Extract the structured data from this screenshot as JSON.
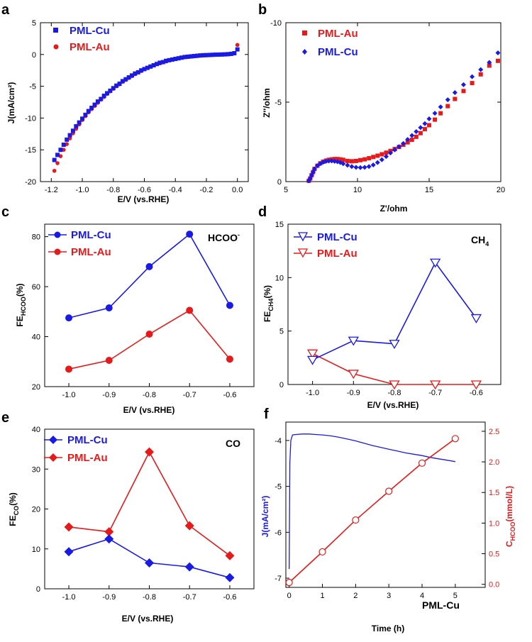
{
  "colors": {
    "cu": "#1a1ae6",
    "au": "#e61a1a",
    "axis": "#000000"
  },
  "chart_data": [
    {
      "panel": "a",
      "type": "scatter",
      "xlabel": "E/V (vs.RHE)",
      "ylabel": "J(mA/cm²)",
      "xlim": [
        -1.27,
        0.07
      ],
      "ylim": [
        -20,
        5
      ],
      "xticks": [
        -1.2,
        -1.0,
        -0.8,
        -0.6,
        -0.4,
        -0.2,
        0.0
      ],
      "xtick_labels": [
        "-1.2",
        "-1.0",
        "-0.8",
        "-0.6",
        "-0.4",
        "-0.2",
        "0.0"
      ],
      "yticks": [
        5,
        0,
        -5,
        -10,
        -15,
        -20
      ],
      "ytick_labels": [
        "5",
        "0",
        "-5",
        "-10",
        "-15",
        "-20"
      ],
      "legend": [
        "PML-Cu",
        "PML-Au"
      ],
      "series": [
        {
          "name": "PML-Cu",
          "marker": "square",
          "color": "#1a1ae6",
          "x": [
            -1.18,
            -1.16,
            -1.14,
            -1.12,
            -1.1,
            -1.08,
            -1.06,
            -1.04,
            -1.02,
            -1.0,
            -0.98,
            -0.96,
            -0.94,
            -0.92,
            -0.9,
            -0.88,
            -0.86,
            -0.84,
            -0.82,
            -0.8,
            -0.78,
            -0.76,
            -0.74,
            -0.72,
            -0.7,
            -0.68,
            -0.66,
            -0.64,
            -0.62,
            -0.6,
            -0.58,
            -0.56,
            -0.54,
            -0.52,
            -0.5,
            -0.48,
            -0.46,
            -0.44,
            -0.42,
            -0.4,
            -0.38,
            -0.36,
            -0.34,
            -0.32,
            -0.3,
            -0.28,
            -0.26,
            -0.24,
            -0.22,
            -0.2,
            -0.18,
            -0.16,
            -0.14,
            -0.12,
            -0.1,
            -0.08,
            -0.06,
            -0.04,
            -0.02,
            0.0
          ],
          "y": [
            -16.6,
            -15.8,
            -15.0,
            -14.2,
            -13.4,
            -12.7,
            -12.0,
            -11.3,
            -10.7,
            -10.1,
            -9.5,
            -8.9,
            -8.4,
            -7.9,
            -7.4,
            -7.0,
            -6.5,
            -6.1,
            -5.7,
            -5.3,
            -4.9,
            -4.6,
            -4.2,
            -3.9,
            -3.6,
            -3.3,
            -3.0,
            -2.8,
            -2.5,
            -2.3,
            -2.1,
            -1.9,
            -1.7,
            -1.5,
            -1.3,
            -1.2,
            -1.0,
            -0.9,
            -0.8,
            -0.7,
            -0.6,
            -0.5,
            -0.4,
            -0.35,
            -0.3,
            -0.25,
            -0.2,
            -0.15,
            -0.12,
            -0.1,
            -0.08,
            -0.05,
            -0.03,
            -0.02,
            0.0,
            0.02,
            0.05,
            0.1,
            0.2,
            0.8
          ]
        },
        {
          "name": "PML-Au",
          "marker": "circle",
          "color": "#e61a1a",
          "x": [
            -1.18,
            -1.16,
            -1.14,
            -1.12,
            -1.1,
            -1.08,
            -1.06,
            -1.04,
            -1.02,
            -1.0,
            -0.98,
            -0.96,
            -0.94,
            -0.92,
            -0.9,
            -0.88,
            -0.86,
            -0.84,
            -0.82,
            -0.8,
            -0.78,
            -0.76,
            -0.74,
            -0.72,
            -0.7,
            -0.68,
            -0.66,
            -0.64,
            -0.62,
            -0.6,
            -0.58,
            -0.56,
            -0.54,
            -0.52,
            -0.5,
            -0.48,
            -0.46,
            -0.44,
            -0.42,
            -0.4,
            -0.38,
            -0.36,
            -0.34,
            -0.32,
            -0.3,
            -0.28,
            -0.26,
            -0.24,
            -0.22,
            -0.2,
            -0.18,
            -0.16,
            -0.14,
            -0.12,
            -0.1,
            -0.08,
            -0.06,
            -0.04,
            -0.02,
            0.0
          ],
          "y": [
            -18.3,
            -17.1,
            -16.0,
            -15.0,
            -14.1,
            -13.2,
            -12.4,
            -11.7,
            -11.0,
            -10.3,
            -9.7,
            -9.1,
            -8.6,
            -8.1,
            -7.6,
            -7.1,
            -6.7,
            -6.2,
            -5.8,
            -5.4,
            -5.0,
            -4.7,
            -4.3,
            -4.0,
            -3.7,
            -3.4,
            -3.1,
            -2.8,
            -2.6,
            -2.3,
            -2.1,
            -1.9,
            -1.7,
            -1.5,
            -1.4,
            -1.2,
            -1.1,
            -0.9,
            -0.8,
            -0.7,
            -0.6,
            -0.5,
            -0.45,
            -0.4,
            -0.35,
            -0.3,
            -0.25,
            -0.2,
            -0.17,
            -0.14,
            -0.11,
            -0.08,
            -0.06,
            -0.04,
            -0.02,
            0.0,
            0.03,
            0.08,
            0.2,
            1.5
          ]
        }
      ]
    },
    {
      "panel": "b",
      "type": "scatter",
      "xlabel": "Z'/ohm",
      "ylabel": "Z''/ohm",
      "xlim": [
        5,
        20
      ],
      "ylim": [
        -10,
        0
      ],
      "y_inverted": true,
      "xticks": [
        5,
        10,
        15,
        20
      ],
      "xtick_labels": [
        "5",
        "10",
        "15",
        "20"
      ],
      "yticks": [
        -10,
        -5,
        0
      ],
      "ytick_labels": [
        "-10",
        "-5",
        "0"
      ],
      "legend": [
        "PML-Au",
        "PML-Cu"
      ],
      "series": [
        {
          "name": "PML-Au",
          "marker": "square",
          "color": "#e61a1a",
          "x": [
            6.6,
            6.7,
            6.8,
            6.9,
            7.0,
            7.2,
            7.4,
            7.6,
            7.8,
            8.0,
            8.2,
            8.4,
            8.6,
            8.8,
            9.0,
            9.3,
            9.6,
            9.9,
            10.2,
            10.5,
            10.8,
            11.1,
            11.4,
            11.7,
            12.0,
            12.3,
            12.6,
            12.9,
            13.2,
            13.5,
            13.8,
            14.1,
            14.4,
            14.7,
            15.0,
            15.4,
            15.8,
            16.3,
            16.8,
            17.4,
            18.0,
            18.6,
            19.2,
            19.8
          ],
          "y": [
            -0.05,
            -0.2,
            -0.4,
            -0.6,
            -0.8,
            -1.0,
            -1.15,
            -1.25,
            -1.32,
            -1.37,
            -1.4,
            -1.42,
            -1.42,
            -1.4,
            -1.37,
            -1.3,
            -1.28,
            -1.3,
            -1.35,
            -1.4,
            -1.47,
            -1.55,
            -1.63,
            -1.72,
            -1.82,
            -1.93,
            -2.05,
            -2.18,
            -2.32,
            -2.47,
            -2.63,
            -2.82,
            -3.05,
            -3.3,
            -3.55,
            -3.9,
            -4.3,
            -4.75,
            -5.2,
            -5.7,
            -6.2,
            -6.75,
            -7.3,
            -7.6
          ]
        },
        {
          "name": "PML-Cu",
          "marker": "diamond",
          "color": "#1a1ae6",
          "x": [
            6.6,
            6.7,
            6.8,
            6.9,
            7.0,
            7.2,
            7.4,
            7.6,
            7.8,
            8.0,
            8.2,
            8.4,
            8.6,
            8.8,
            9.0,
            9.3,
            9.6,
            9.9,
            10.2,
            10.5,
            10.8,
            11.1,
            11.4,
            11.7,
            12.0,
            12.3,
            12.6,
            12.9,
            13.2,
            13.5,
            13.8,
            14.1,
            14.4,
            14.7,
            15.0,
            15.4,
            15.8,
            16.3,
            16.8,
            17.4,
            18.0,
            18.6,
            19.2,
            19.8
          ],
          "y": [
            -0.05,
            -0.2,
            -0.4,
            -0.6,
            -0.8,
            -1.0,
            -1.13,
            -1.22,
            -1.28,
            -1.3,
            -1.3,
            -1.28,
            -1.25,
            -1.2,
            -1.13,
            -1.03,
            -0.95,
            -0.9,
            -0.88,
            -0.9,
            -0.95,
            -1.05,
            -1.2,
            -1.38,
            -1.58,
            -1.8,
            -2.0,
            -2.2,
            -2.4,
            -2.65,
            -2.9,
            -3.15,
            -3.4,
            -3.65,
            -3.95,
            -4.3,
            -4.7,
            -5.15,
            -5.6,
            -6.1,
            -6.6,
            -7.05,
            -7.5,
            -8.1
          ]
        }
      ]
    },
    {
      "panel": "c",
      "type": "line",
      "xlabel": "E/V (vs.RHE)",
      "ylabel": "FE",
      "ylabel_sub": "HCOO",
      "ylabel_end": "(%)",
      "annotation": "HCOO",
      "annotation_sup": "-",
      "xlim": [
        -1.06,
        -0.54
      ],
      "ylim": [
        20,
        85
      ],
      "categories": [
        -1.0,
        -0.9,
        -0.8,
        -0.7,
        -0.6
      ],
      "xtick_labels": [
        "-1.0",
        "-0.9",
        "-0.8",
        "-0.7",
        "-0.6"
      ],
      "yticks": [
        20,
        40,
        60,
        80
      ],
      "ytick_labels": [
        "20",
        "40",
        "60",
        "80"
      ],
      "legend": [
        "PML-Cu",
        "PML-Au"
      ],
      "series": [
        {
          "name": "PML-Cu",
          "marker": "circle-filled",
          "color": "#1a1ae6",
          "values": [
            47.5,
            51.5,
            68.0,
            81.0,
            52.5
          ]
        },
        {
          "name": "PML-Au",
          "marker": "circle-filled",
          "color": "#e61a1a",
          "values": [
            27.0,
            30.5,
            41.0,
            50.5,
            31.0
          ]
        }
      ]
    },
    {
      "panel": "d",
      "type": "line",
      "xlabel": "E/V (vs.RHE)",
      "ylabel": "FE",
      "ylabel_sub": "CH4",
      "ylabel_end": "(%)",
      "annotation": "CH",
      "annotation_sub": "4",
      "xlim": [
        -1.06,
        -0.54
      ],
      "ylim": [
        0,
        15
      ],
      "categories": [
        -1.0,
        -0.9,
        -0.8,
        -0.7,
        -0.6
      ],
      "xtick_labels": [
        "-1.0",
        "-0.9",
        "-0.8",
        "-0.7",
        "-0.6"
      ],
      "yticks": [
        0,
        5,
        10,
        15
      ],
      "ytick_labels": [
        "0",
        "5",
        "10",
        "15"
      ],
      "legend": [
        "PML-Cu",
        "PML-Au"
      ],
      "series": [
        {
          "name": "PML-Cu",
          "marker": "triangle-down-open",
          "color": "#1a1ae6",
          "values": [
            2.3,
            4.1,
            3.8,
            11.4,
            6.2
          ]
        },
        {
          "name": "PML-Au",
          "marker": "triangle-down-open",
          "color": "#e61a1a",
          "values": [
            2.9,
            1.0,
            0.0,
            0.0,
            0.0
          ]
        }
      ]
    },
    {
      "panel": "e",
      "type": "line",
      "xlabel": "E/V (vs.RHE)",
      "ylabel": "FE",
      "ylabel_sub": "CO",
      "ylabel_end": "(%)",
      "annotation": "CO",
      "xlim": [
        -1.06,
        -0.54
      ],
      "ylim": [
        0,
        40
      ],
      "categories": [
        -1.0,
        -0.9,
        -0.8,
        -0.7,
        -0.6
      ],
      "xtick_labels": [
        "-1.0",
        "-0.9",
        "-0.8",
        "-0.7",
        "-0.6"
      ],
      "yticks": [
        0,
        10,
        20,
        30,
        40
      ],
      "ytick_labels": [
        "0",
        "10",
        "20",
        "30",
        "40"
      ],
      "legend": [
        "PML-Cu",
        "PML-Au"
      ],
      "series": [
        {
          "name": "PML-Cu",
          "marker": "diamond-filled",
          "color": "#1a1ae6",
          "values": [
            9.3,
            12.5,
            6.5,
            5.5,
            2.8
          ]
        },
        {
          "name": "PML-Au",
          "marker": "diamond-filled",
          "color": "#e61a1a",
          "values": [
            15.5,
            14.3,
            34.3,
            15.8,
            8.3
          ]
        }
      ]
    },
    {
      "panel": "f",
      "type": "line",
      "xlabel": "Time (h)",
      "ylabel": "J(mA/cm²)",
      "ylabel_right": "C",
      "ylabel_right_sub": "HCOO",
      "ylabel_right_end": "(mmol/L)",
      "annotation": "PML-Cu",
      "xlim": [
        -0.1,
        5.9
      ],
      "ylim": [
        -7.2,
        -3.6
      ],
      "y2lim": [
        -0.05,
        2.65
      ],
      "xticks": [
        0,
        1,
        2,
        3,
        4,
        5
      ],
      "xtick_labels": [
        "0",
        "1",
        "2",
        "3",
        "4",
        "5"
      ],
      "yticks": [
        -4,
        -5,
        -6,
        -7
      ],
      "ytick_labels": [
        "-4",
        "-5",
        "-6",
        "-7"
      ],
      "y2ticks": [
        0.0,
        0.5,
        1.0,
        1.5,
        2.0,
        2.5
      ],
      "y2tick_labels": [
        "0.0",
        "0.5",
        "1.0",
        "1.5",
        "2.0",
        "2.5"
      ],
      "series": [
        {
          "name": "J (PML-Cu)",
          "axis": "left",
          "marker": "none",
          "color": "#1a1ae6",
          "x": [
            0.0,
            0.02,
            0.05,
            0.1,
            0.2,
            0.4,
            0.6,
            0.8,
            1.0,
            1.25,
            1.5,
            1.75,
            2.0,
            2.25,
            2.5,
            2.75,
            3.0,
            3.25,
            3.5,
            3.75,
            4.0,
            4.25,
            4.5,
            4.75,
            5.0
          ],
          "y": [
            -6.8,
            -4.5,
            -4.0,
            -3.88,
            -3.87,
            -3.86,
            -3.86,
            -3.87,
            -3.88,
            -3.9,
            -3.93,
            -3.97,
            -4.01,
            -4.06,
            -4.11,
            -4.15,
            -4.19,
            -4.23,
            -4.27,
            -4.3,
            -4.33,
            -4.37,
            -4.4,
            -4.43,
            -4.46
          ]
        },
        {
          "name": "C HCOO- (PML-Cu)",
          "axis": "right",
          "marker": "circle-open",
          "color": "#e61a1a",
          "x": [
            0,
            1,
            2,
            3,
            4,
            5
          ],
          "y": [
            0.03,
            0.53,
            1.05,
            1.52,
            1.98,
            2.38
          ]
        }
      ]
    }
  ]
}
